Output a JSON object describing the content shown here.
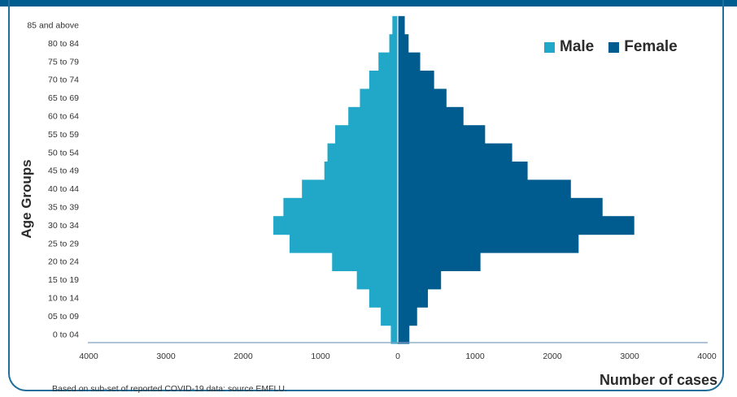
{
  "chart_data": {
    "type": "bar",
    "orientation": "horizontal",
    "categories": [
      "85 and above",
      "80 to 84",
      "75 to 79",
      "70 to 74",
      "65 to 69",
      "60 to 64",
      "55 to 59",
      "50 to 54",
      "45 to 49",
      "40 to 44",
      "35 to 39",
      "30 to 34",
      "25 to 29",
      "20 to 24",
      "15 to 19",
      "10 to 14",
      "05 to 09",
      "0 to 04"
    ],
    "series": [
      {
        "name": "Male",
        "color": "#21a8c9",
        "values": [
          70,
          110,
          250,
          370,
          490,
          640,
          810,
          910,
          950,
          1240,
          1480,
          1610,
          1400,
          850,
          530,
          370,
          220,
          90
        ]
      },
      {
        "name": "Female",
        "color": "#005b8f",
        "values": [
          90,
          140,
          290,
          470,
          630,
          850,
          1130,
          1480,
          1680,
          2240,
          2650,
          3060,
          2340,
          1070,
          560,
          390,
          250,
          150
        ]
      }
    ],
    "xlabel": "Number of cases",
    "ylabel": "Age Groups",
    "xticks": [
      "4000",
      "3000",
      "2000",
      "1000",
      "0",
      "1000",
      "2000",
      "3000",
      "4000"
    ],
    "xlim": [
      -4000,
      4000
    ],
    "legend_position": "top-right",
    "grid": false
  },
  "footnote": "Based on sub-set of reported COVID-19 data: source EMFLU."
}
